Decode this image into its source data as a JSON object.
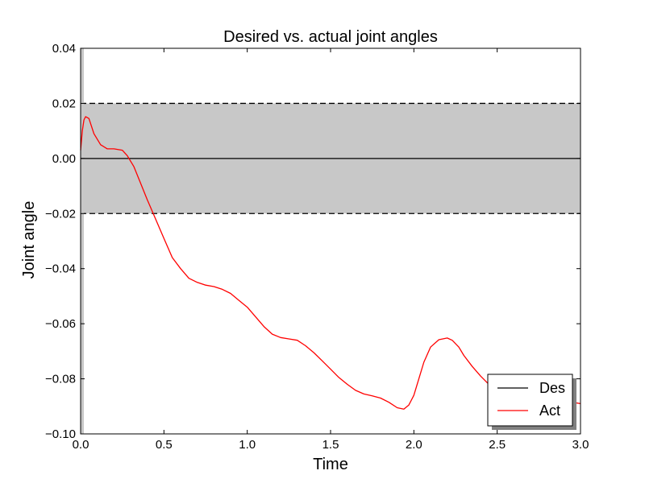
{
  "chart_data": {
    "type": "line",
    "title": "Desired vs. actual joint angles",
    "xlabel": "Time",
    "ylabel": "Joint angle",
    "xlim": [
      0.0,
      3.0
    ],
    "ylim": [
      -0.1,
      0.04
    ],
    "xticks": [
      "0.0",
      "0.5",
      "1.0",
      "1.5",
      "2.0",
      "2.5",
      "3.0"
    ],
    "xtick_values": [
      0.0,
      0.5,
      1.0,
      1.5,
      2.0,
      2.5,
      3.0
    ],
    "yticks": [
      "0.04",
      "0.02",
      "0.00",
      "−0.02",
      "−0.04",
      "−0.06",
      "−0.08",
      "−0.10"
    ],
    "ytick_values": [
      0.04,
      0.02,
      0.0,
      -0.02,
      -0.04,
      -0.06,
      -0.08,
      -0.1
    ],
    "grid": false,
    "legend_position": "lower-right",
    "band": {
      "lower": -0.02,
      "upper": 0.02,
      "color": "#c8c8c8"
    },
    "series": [
      {
        "name": "Des",
        "color": "#000000",
        "x": [
          0.0,
          3.0
        ],
        "y": [
          0.0,
          0.0
        ]
      },
      {
        "name": "Act",
        "color": "#ff0000",
        "x": [
          0.0,
          0.01,
          0.02,
          0.03,
          0.05,
          0.08,
          0.12,
          0.16,
          0.2,
          0.25,
          0.28,
          0.32,
          0.36,
          0.4,
          0.45,
          0.5,
          0.55,
          0.6,
          0.65,
          0.7,
          0.75,
          0.8,
          0.85,
          0.9,
          0.95,
          1.0,
          1.05,
          1.1,
          1.15,
          1.2,
          1.25,
          1.3,
          1.35,
          1.4,
          1.45,
          1.5,
          1.55,
          1.6,
          1.65,
          1.7,
          1.75,
          1.8,
          1.85,
          1.9,
          1.94,
          1.97,
          2.0,
          2.03,
          2.06,
          2.1,
          2.15,
          2.2,
          2.23,
          2.27,
          2.3,
          2.35,
          2.4,
          2.45,
          2.5,
          2.55,
          2.6,
          2.65,
          2.7,
          2.75,
          2.8,
          2.85,
          2.9,
          2.95,
          3.0
        ],
        "y": [
          0.003,
          0.01,
          0.014,
          0.0152,
          0.0145,
          0.009,
          0.005,
          0.0035,
          0.0035,
          0.003,
          0.001,
          -0.003,
          -0.009,
          -0.015,
          -0.022,
          -0.029,
          -0.036,
          -0.04,
          -0.0435,
          -0.045,
          -0.046,
          -0.0465,
          -0.0475,
          -0.049,
          -0.0515,
          -0.054,
          -0.0575,
          -0.061,
          -0.0638,
          -0.065,
          -0.0655,
          -0.066,
          -0.068,
          -0.0705,
          -0.0735,
          -0.0765,
          -0.0795,
          -0.082,
          -0.0842,
          -0.0855,
          -0.0862,
          -0.087,
          -0.0885,
          -0.0905,
          -0.091,
          -0.0895,
          -0.086,
          -0.08,
          -0.074,
          -0.0685,
          -0.0658,
          -0.0652,
          -0.066,
          -0.0685,
          -0.0715,
          -0.0755,
          -0.079,
          -0.082,
          -0.0845,
          -0.0862,
          -0.0873,
          -0.0877,
          -0.0878,
          -0.0877,
          -0.0875,
          -0.0876,
          -0.088,
          -0.0885,
          -0.089
        ]
      }
    ]
  }
}
